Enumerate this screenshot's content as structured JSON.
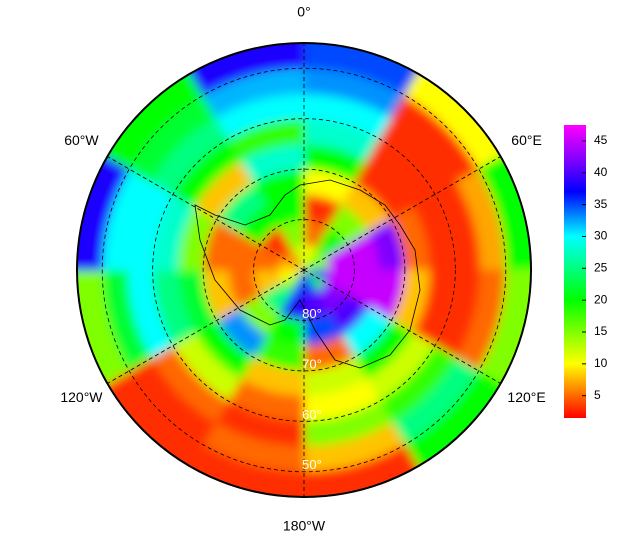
{
  "chart_data": {
    "type": "polar-map",
    "lon_ticks": [
      {
        "value": 0,
        "label": "0°"
      },
      {
        "value": 60,
        "label": "60°E"
      },
      {
        "value": 120,
        "label": "120°E"
      },
      {
        "value": 180,
        "label": "180°W"
      },
      {
        "value": -120,
        "label": "120°W"
      },
      {
        "value": -60,
        "label": "60°W"
      }
    ],
    "lat_ticks": [
      {
        "value": 80,
        "label": "80°"
      },
      {
        "value": 70,
        "label": "70°"
      },
      {
        "value": 60,
        "label": "60°"
      },
      {
        "value": 50,
        "label": "50°"
      }
    ],
    "lat_edges": [
      90,
      85,
      80,
      75,
      70,
      65,
      60,
      55,
      50,
      45
    ],
    "lon_edges": [
      0,
      30,
      60,
      90,
      120,
      150,
      180,
      210,
      240,
      270,
      300,
      330,
      360
    ],
    "values": [
      [
        10,
        15,
        15,
        40,
        20,
        38,
        35,
        15,
        10,
        8,
        5,
        12
      ],
      [
        5,
        20,
        45,
        45,
        42,
        40,
        38,
        25,
        8,
        5,
        3,
        15
      ],
      [
        3,
        15,
        45,
        45,
        40,
        35,
        20,
        15,
        5,
        5,
        20,
        20
      ],
      [
        10,
        8,
        42,
        45,
        30,
        5,
        18,
        33,
        8,
        5,
        25,
        20
      ],
      [
        20,
        3,
        5,
        8,
        20,
        12,
        8,
        20,
        22,
        15,
        8,
        28
      ],
      [
        28,
        3,
        3,
        3,
        12,
        10,
        5,
        12,
        25,
        28,
        20,
        18
      ],
      [
        30,
        3,
        3,
        3,
        18,
        15,
        3,
        5,
        30,
        30,
        25,
        30
      ],
      [
        33,
        3,
        7,
        5,
        25,
        8,
        5,
        3,
        22,
        30,
        22,
        32
      ],
      [
        35,
        10,
        20,
        15,
        20,
        3,
        3,
        3,
        15,
        38,
        20,
        38
      ]
    ],
    "clim": [
      1.5,
      47.5
    ],
    "colorbar_ticks": [
      5,
      10,
      15,
      20,
      25,
      30,
      35,
      40,
      45
    ],
    "colorscale": [
      [
        1.5,
        "#ff0000"
      ],
      [
        10,
        "#ffff00"
      ],
      [
        20,
        "#00ff00"
      ],
      [
        30,
        "#00ffff"
      ],
      [
        37,
        "#0000ff"
      ],
      [
        42,
        "#8000ff"
      ],
      [
        47.5,
        "#ff00ff"
      ]
    ]
  }
}
